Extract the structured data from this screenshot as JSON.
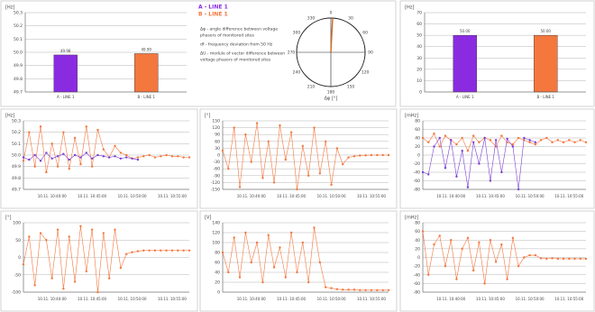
{
  "chart_data": [
    {
      "type": "bar",
      "ylabel": "[Hz]",
      "categories": [
        "A - LINE 1",
        "B - LINE 1"
      ],
      "values": [
        49.98,
        49.99
      ],
      "value_labels": [
        "49.98",
        "49.99"
      ],
      "colors": [
        "#8a2be2",
        "#f4773d"
      ],
      "legend": [
        {
          "name": "A - LINE 1",
          "color": "#8a2be2"
        },
        {
          "name": "B - LINE 1",
          "color": "#f4773d"
        }
      ],
      "ylim": [
        49.7,
        50.3
      ],
      "yticks": [
        49.7,
        49.8,
        49.9,
        {
          "value": 50,
          "label": "50.0"
        },
        50.1,
        50.2,
        50.3
      ],
      "grid": true
    },
    {
      "type": "polar",
      "xlabel": "Δφ [°]",
      "value": 3,
      "angleticks": [
        0,
        30,
        60,
        90,
        120,
        150,
        180,
        210,
        240,
        270,
        300,
        330
      ],
      "color": "#d2691e",
      "annotations": [
        "Δφ - angle difference between voltage",
        "phasors of monitored sites",
        "df - frequency deviation from 50 Hz",
        "ΔU - module of vector difference between",
        "voltage phasors of monitored sites"
      ]
    },
    {
      "type": "bar",
      "ylabel": "[Hz]",
      "categories": [
        "A - LINE 1",
        "B - LINE 1"
      ],
      "values": [
        50,
        50
      ],
      "value_labels": [
        "50.00",
        "50.00"
      ],
      "colors": [
        "#8a2be2",
        "#f4773d"
      ],
      "ylim": [
        0,
        70
      ],
      "yticks": [
        0,
        10,
        20,
        30,
        40,
        50,
        60,
        70
      ],
      "grid": true
    },
    {
      "type": "line",
      "ylabel": "[Hz]",
      "categories": [
        null,
        null,
        null,
        null,
        null,
        "10.11. 10:40:00",
        null,
        null,
        null,
        null,
        null,
        null,
        "10.11. 10:45:00",
        null,
        null,
        null,
        null,
        null,
        null,
        "10.11. 10:50:00",
        null,
        null,
        null,
        null,
        null,
        null,
        "10.11. 10:55:00",
        null,
        null,
        null
      ],
      "series": [
        {
          "name": "B - LINE 1",
          "color": "#f4773d",
          "values": [
            49.95,
            50.2,
            49.9,
            50.25,
            49.85,
            50.1,
            49.9,
            50.2,
            49.88,
            50.15,
            49.92,
            50.25,
            49.9,
            50.22,
            50.05,
            49.98,
            50.08,
            50.02,
            50.0,
            49.97,
            49.98,
            49.99,
            50.0,
            49.98,
            49.99,
            50.0,
            49.99,
            49.99,
            49.98,
            49.98
          ]
        },
        {
          "name": "A - LINE 1",
          "color": "#7b3fd6",
          "values": [
            49.98,
            49.96,
            50.0,
            49.95,
            50.02,
            49.97,
            49.99,
            50.01,
            49.96,
            50.0,
            49.98,
            50.02,
            49.97,
            50.0,
            49.99,
            49.98,
            49.99,
            49.97,
            49.98,
            49.97,
            49.96,
            null,
            null,
            null,
            null,
            null,
            null,
            null,
            null,
            null
          ]
        }
      ],
      "ylim": [
        49.7,
        50.3
      ],
      "yticks": [
        49.7,
        49.8,
        49.9,
        {
          "value": 50,
          "label": "50.0"
        },
        50.1,
        50.2,
        50.3
      ],
      "grid": true
    },
    {
      "type": "line",
      "ylabel": "[°]",
      "categories": [
        null,
        null,
        null,
        null,
        null,
        "10.11. 10:40:00",
        null,
        null,
        null,
        null,
        null,
        null,
        "10.11. 10:45:00",
        null,
        null,
        null,
        null,
        null,
        null,
        "10.11. 10:50:00",
        null,
        null,
        null,
        null,
        null,
        null,
        "10.11. 10:55:00",
        null,
        null,
        null
      ],
      "series": [
        {
          "name": "Δφ",
          "color": "#f4773d",
          "values": [
            20,
            -60,
            120,
            -140,
            90,
            -30,
            140,
            -100,
            60,
            -120,
            130,
            -20,
            100,
            -150,
            40,
            -90,
            120,
            -80,
            60,
            -130,
            30,
            -40,
            -10,
            -5,
            -2,
            -1,
            0,
            0,
            0,
            0
          ]
        }
      ],
      "ylim": [
        -150,
        150
      ],
      "yticks": [
        -150,
        -120,
        -90,
        -60,
        -30,
        0,
        30,
        60,
        90,
        120,
        150
      ],
      "grid": true
    },
    {
      "type": "line",
      "ylabel": "[mHz]",
      "categories": [
        null,
        null,
        null,
        null,
        null,
        "10.11. 10:40:00",
        null,
        null,
        null,
        null,
        null,
        null,
        "10.11. 10:45:00",
        null,
        null,
        null,
        null,
        null,
        null,
        "10.11. 10:50:00",
        null,
        null,
        null,
        null,
        null,
        null,
        "10.11. 10:55:00",
        null,
        null,
        null
      ],
      "series": [
        {
          "name": "B - LINE 1",
          "color": "#f4773d",
          "values": [
            40,
            30,
            50,
            20,
            45,
            35,
            25,
            40,
            10,
            45,
            30,
            40,
            35,
            20,
            45,
            30,
            25,
            40,
            35,
            30,
            25,
            35,
            40,
            30,
            35,
            30,
            35,
            30,
            35,
            30
          ]
        },
        {
          "name": "A - LINE 1",
          "color": "#7b3fd6",
          "values": [
            -40,
            -45,
            20,
            40,
            -30,
            35,
            -50,
            10,
            -75,
            30,
            -20,
            40,
            -60,
            35,
            -40,
            38,
            20,
            -80,
            40,
            35,
            30,
            null,
            null,
            null,
            null,
            null,
            null,
            null,
            null,
            null
          ]
        }
      ],
      "ylim": [
        -80,
        80
      ],
      "yticks": [
        -80,
        -60,
        -40,
        -20,
        0,
        20,
        40,
        60,
        80
      ],
      "grid": true
    },
    {
      "type": "line",
      "ylabel": "[°]",
      "categories": [
        null,
        null,
        null,
        null,
        null,
        "10.11. 10:40:00",
        null,
        null,
        null,
        null,
        null,
        null,
        "10.11. 10:45:00",
        null,
        null,
        null,
        null,
        null,
        null,
        "10.11. 10:50:00",
        null,
        null,
        null,
        null,
        null,
        null,
        "10.11. 10:55:00",
        null,
        null,
        null
      ],
      "series": [
        {
          "name": "Δφ",
          "color": "#f4773d",
          "values": [
            -20,
            60,
            -80,
            70,
            50,
            -60,
            80,
            -90,
            60,
            -70,
            90,
            -40,
            80,
            -100,
            70,
            -60,
            80,
            -30,
            10,
            15,
            18,
            20,
            20,
            20,
            20,
            20,
            20,
            20,
            20,
            20
          ]
        }
      ],
      "ylim": [
        -100,
        100
      ],
      "yticks": [
        -100,
        -50,
        0,
        50,
        100
      ],
      "grid": true
    },
    {
      "type": "line",
      "ylabel": "[V]",
      "categories": [
        null,
        null,
        null,
        null,
        null,
        "10.11. 10:40:00",
        null,
        null,
        null,
        null,
        null,
        null,
        "10.11. 10:45:00",
        null,
        null,
        null,
        null,
        null,
        null,
        "10.11. 10:50:00",
        null,
        null,
        null,
        null,
        null,
        null,
        "10.11. 10:55:00",
        null,
        null,
        null
      ],
      "series": [
        {
          "name": "ΔU",
          "color": "#f4773d",
          "values": [
            80,
            40,
            110,
            30,
            120,
            60,
            100,
            20,
            115,
            50,
            90,
            30,
            120,
            40,
            100,
            20,
            130,
            60,
            10,
            8,
            6,
            5,
            5,
            5,
            4,
            4,
            4,
            4,
            4,
            4
          ]
        }
      ],
      "ylim": [
        0,
        140
      ],
      "yticks": [
        0,
        20,
        40,
        60,
        80,
        100,
        120,
        140
      ],
      "grid": true
    },
    {
      "type": "line",
      "ylabel": "[mHz]",
      "categories": [
        null,
        null,
        null,
        null,
        null,
        "10.11. 10:40:00",
        null,
        null,
        null,
        null,
        null,
        null,
        "10.11. 10:45:00",
        null,
        null,
        null,
        null,
        null,
        null,
        "10.11. 10:50:00",
        null,
        null,
        null,
        null,
        null,
        null,
        "10.11. 10:55:00",
        null,
        null,
        null
      ],
      "series": [
        {
          "name": "df",
          "color": "#f4773d",
          "values": [
            60,
            -40,
            30,
            50,
            -20,
            40,
            -50,
            20,
            45,
            -30,
            35,
            -60,
            40,
            -10,
            30,
            -50,
            45,
            -20,
            0,
            5,
            5,
            -2,
            -3,
            -2,
            -3,
            -3,
            -3,
            -3,
            -3,
            -3
          ]
        }
      ],
      "ylim": [
        -80,
        80
      ],
      "yticks": [
        -80,
        -60,
        -40,
        -20,
        0,
        20,
        40,
        60,
        80
      ],
      "grid": true
    }
  ]
}
